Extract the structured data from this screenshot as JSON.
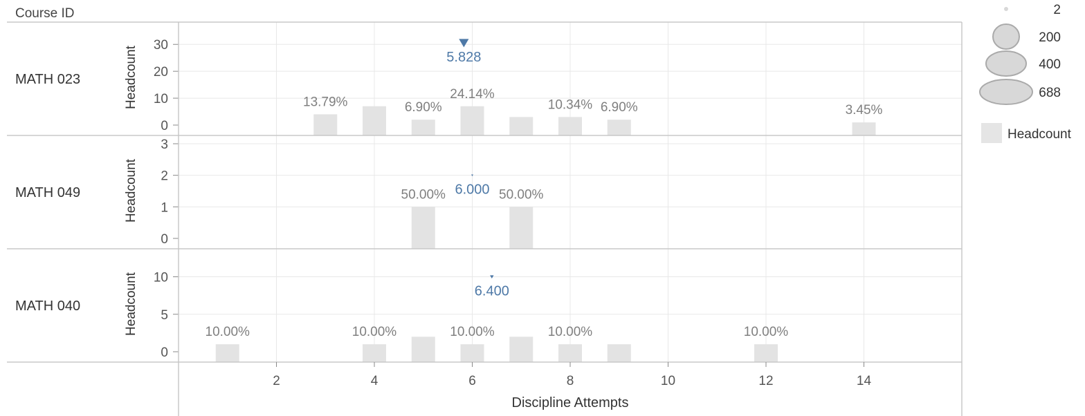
{
  "row_header": "Course ID",
  "chart_data": {
    "type": "bar",
    "xlabel": "Discipline Attempts",
    "ylabel": "Headcount",
    "xlim": [
      0,
      16
    ],
    "x_ticks": [
      2,
      4,
      6,
      8,
      10,
      12,
      14
    ],
    "grid": true,
    "panels": [
      {
        "course": "MATH 023",
        "ylim": [
          0,
          37
        ],
        "y_ticks": [
          0,
          10,
          20,
          30
        ],
        "bars": [
          {
            "x": 3,
            "y": 4,
            "label": "13.79%"
          },
          {
            "x": 4,
            "y": 7,
            "label": ""
          },
          {
            "x": 5,
            "y": 2,
            "label": "6.90%"
          },
          {
            "x": 6,
            "y": 7,
            "label": "24.14%"
          },
          {
            "x": 7,
            "y": 3,
            "label": ""
          },
          {
            "x": 8,
            "y": 3,
            "label": "10.34%"
          },
          {
            "x": 9,
            "y": 2,
            "label": "6.90%"
          },
          {
            "x": 14,
            "y": 1,
            "label": "3.45%"
          }
        ],
        "average": {
          "x": 5.828,
          "label": "5.828",
          "size": 200
        }
      },
      {
        "course": "MATH 049",
        "ylim": [
          0,
          3
        ],
        "y_ticks": [
          0,
          1,
          2,
          3
        ],
        "bars": [
          {
            "x": 5,
            "y": 1,
            "label": "50.00%"
          },
          {
            "x": 7,
            "y": 1,
            "label": "50.00%"
          }
        ],
        "average": {
          "x": 6.0,
          "label": "6.000",
          "size": 2
        }
      },
      {
        "course": "MATH 040",
        "ylim": [
          0,
          13
        ],
        "y_ticks": [
          0,
          5,
          10
        ],
        "bars": [
          {
            "x": 1,
            "y": 1,
            "label": "10.00%"
          },
          {
            "x": 4,
            "y": 1,
            "label": "10.00%"
          },
          {
            "x": 5,
            "y": 2,
            "label": ""
          },
          {
            "x": 6,
            "y": 1,
            "label": "10.00%"
          },
          {
            "x": 7,
            "y": 2,
            "label": ""
          },
          {
            "x": 8,
            "y": 1,
            "label": "10.00%"
          },
          {
            "x": 9,
            "y": 1,
            "label": ""
          },
          {
            "x": 12,
            "y": 1,
            "label": "10.00%"
          }
        ],
        "average": {
          "x": 6.4,
          "label": "6.400",
          "size": 30
        }
      }
    ],
    "size_legend": [
      {
        "value": 2,
        "label": "2"
      },
      {
        "value": 200,
        "label": "200"
      },
      {
        "value": 400,
        "label": "400"
      },
      {
        "value": 688,
        "label": "688"
      }
    ],
    "color_legend": [
      {
        "label": "Headcount",
        "color": "#e5e5e5"
      }
    ],
    "colors": {
      "bar": "#e3e3e3",
      "average": "#4e79a7",
      "bar_label": "#7f7f7f",
      "text": "#555555",
      "grid": "#e8e8e8",
      "border": "#c8c8c8",
      "legend_circle": "#d8d8d8",
      "legend_circle_stroke": "#aaaaaa"
    }
  }
}
